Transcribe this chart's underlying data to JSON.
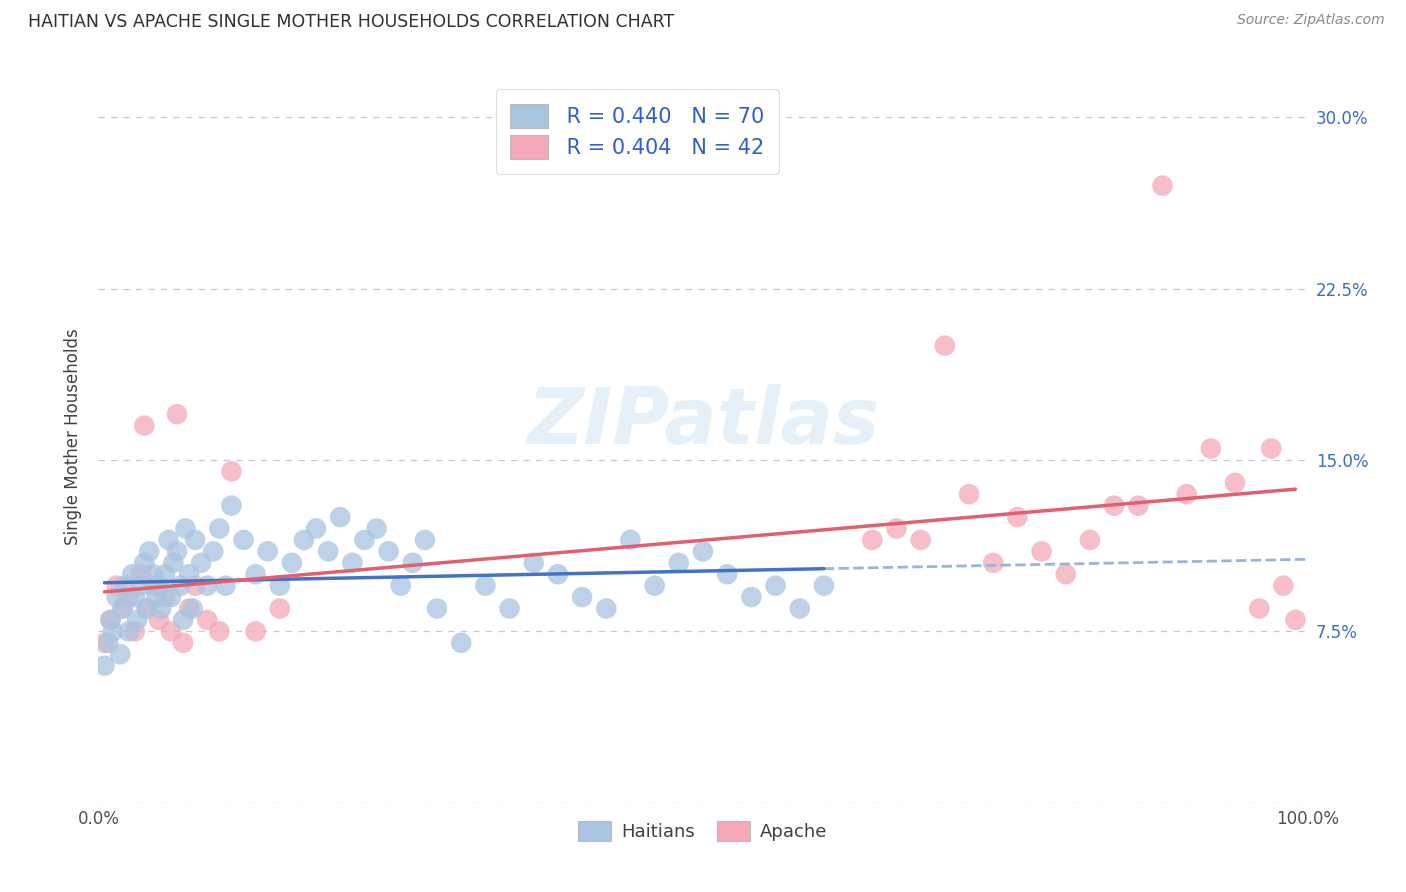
{
  "title": "HAITIAN VS APACHE SINGLE MOTHER HOUSEHOLDS CORRELATION CHART",
  "source": "Source: ZipAtlas.com",
  "ylabel": "Single Mother Households",
  "xlabel": "",
  "xlim": [
    0.0,
    1.0
  ],
  "ylim": [
    0.0,
    0.32
  ],
  "xticks": [
    0.0,
    0.1,
    0.2,
    0.3,
    0.4,
    0.5,
    0.6,
    0.7,
    0.8,
    0.9,
    1.0
  ],
  "xticklabels": [
    "0.0%",
    "",
    "",
    "",
    "",
    "",
    "",
    "",
    "",
    "",
    "100.0%"
  ],
  "yticks": [
    0.0,
    0.075,
    0.15,
    0.225,
    0.3
  ],
  "yticklabels": [
    "",
    "7.5%",
    "15.0%",
    "22.5%",
    "30.0%"
  ],
  "haitian_R": 0.44,
  "haitian_N": 70,
  "apache_R": 0.404,
  "apache_N": 42,
  "haitian_color": "#a8c4e0",
  "apache_color": "#f4a8b8",
  "haitian_line_color": "#4472c4",
  "apache_line_color": "#e06070",
  "dashed_line_color": "#9ab4d8",
  "grid_color": "#c8c8c8",
  "title_color": "#404040",
  "watermark": "ZIPatlas",
  "haitian_x": [
    0.005,
    0.008,
    0.01,
    0.012,
    0.015,
    0.018,
    0.02,
    0.022,
    0.025,
    0.028,
    0.03,
    0.032,
    0.035,
    0.038,
    0.04,
    0.042,
    0.045,
    0.048,
    0.05,
    0.052,
    0.055,
    0.058,
    0.06,
    0.062,
    0.065,
    0.068,
    0.07,
    0.072,
    0.075,
    0.078,
    0.08,
    0.085,
    0.09,
    0.095,
    0.1,
    0.105,
    0.11,
    0.12,
    0.13,
    0.14,
    0.15,
    0.16,
    0.17,
    0.18,
    0.19,
    0.2,
    0.21,
    0.22,
    0.23,
    0.24,
    0.25,
    0.26,
    0.27,
    0.28,
    0.3,
    0.32,
    0.34,
    0.36,
    0.38,
    0.4,
    0.42,
    0.44,
    0.46,
    0.48,
    0.5,
    0.52,
    0.54,
    0.56,
    0.58,
    0.6
  ],
  "haitian_y": [
    0.06,
    0.07,
    0.08,
    0.075,
    0.09,
    0.065,
    0.085,
    0.095,
    0.075,
    0.1,
    0.09,
    0.08,
    0.095,
    0.105,
    0.085,
    0.11,
    0.1,
    0.09,
    0.095,
    0.085,
    0.1,
    0.115,
    0.09,
    0.105,
    0.11,
    0.095,
    0.08,
    0.12,
    0.1,
    0.085,
    0.115,
    0.105,
    0.095,
    0.11,
    0.12,
    0.095,
    0.13,
    0.115,
    0.1,
    0.11,
    0.095,
    0.105,
    0.115,
    0.12,
    0.11,
    0.125,
    0.105,
    0.115,
    0.12,
    0.11,
    0.095,
    0.105,
    0.115,
    0.085,
    0.07,
    0.095,
    0.085,
    0.105,
    0.1,
    0.09,
    0.085,
    0.115,
    0.095,
    0.105,
    0.11,
    0.1,
    0.09,
    0.095,
    0.085,
    0.095
  ],
  "apache_x": [
    0.005,
    0.01,
    0.015,
    0.02,
    0.025,
    0.03,
    0.035,
    0.04,
    0.045,
    0.05,
    0.055,
    0.06,
    0.065,
    0.07,
    0.075,
    0.08,
    0.09,
    0.1,
    0.11,
    0.13,
    0.15,
    0.038,
    0.64,
    0.66,
    0.68,
    0.7,
    0.72,
    0.74,
    0.76,
    0.78,
    0.8,
    0.82,
    0.84,
    0.86,
    0.88,
    0.9,
    0.92,
    0.94,
    0.96,
    0.97,
    0.98,
    0.99
  ],
  "apache_y": [
    0.07,
    0.08,
    0.095,
    0.085,
    0.09,
    0.075,
    0.1,
    0.085,
    0.095,
    0.08,
    0.09,
    0.075,
    0.17,
    0.07,
    0.085,
    0.095,
    0.08,
    0.075,
    0.145,
    0.075,
    0.085,
    0.165,
    0.115,
    0.12,
    0.115,
    0.2,
    0.135,
    0.105,
    0.125,
    0.11,
    0.1,
    0.115,
    0.13,
    0.13,
    0.27,
    0.135,
    0.155,
    0.14,
    0.085,
    0.155,
    0.095,
    0.08
  ]
}
